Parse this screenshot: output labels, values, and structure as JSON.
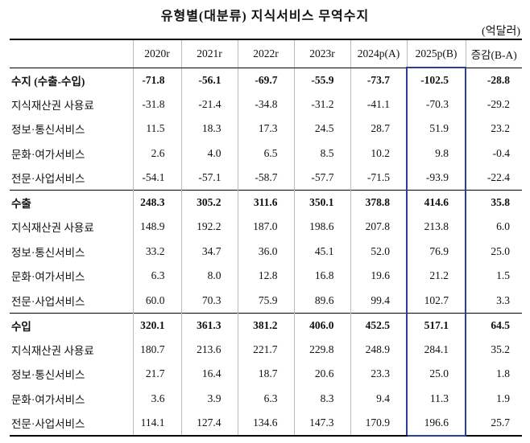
{
  "title": "유형별(대분류) 지식서비스 무역수지",
  "unit": "(억달러)",
  "table": {
    "columns": [
      "2020r",
      "2021r",
      "2022r",
      "2023r",
      "2024p(A)",
      "2025p(B)",
      "증감(B-A)"
    ],
    "sections": [
      {
        "rows": [
          {
            "label": "수지 (수출-수입)",
            "cells": [
              "-71.8",
              "-56.1",
              "-69.7",
              "-55.9",
              "-73.7",
              "-102.5",
              "-28.8"
            ]
          },
          {
            "label": "지식재산권 사용료",
            "cells": [
              "-31.8",
              "-21.4",
              "-34.8",
              "-31.2",
              "-41.1",
              "-70.3",
              "-29.2"
            ]
          },
          {
            "label": "정보·통신서비스",
            "cells": [
              "11.5",
              "18.3",
              "17.3",
              "24.5",
              "28.7",
              "51.9",
              "23.2"
            ]
          },
          {
            "label": "문화·여가서비스",
            "cells": [
              "2.6",
              "4.0",
              "6.5",
              "8.5",
              "10.2",
              "9.8",
              "-0.4"
            ]
          },
          {
            "label": "전문·사업서비스",
            "cells": [
              "-54.1",
              "-57.1",
              "-58.7",
              "-57.7",
              "-71.5",
              "-93.9",
              "-22.4"
            ]
          }
        ]
      },
      {
        "rows": [
          {
            "label": "수출",
            "cells": [
              "248.3",
              "305.2",
              "311.6",
              "350.1",
              "378.8",
              "414.6",
              "35.8"
            ]
          },
          {
            "label": "지식재산권 사용료",
            "cells": [
              "148.9",
              "192.2",
              "187.0",
              "198.6",
              "207.8",
              "213.8",
              "6.0"
            ]
          },
          {
            "label": "정보·통신서비스",
            "cells": [
              "33.2",
              "34.7",
              "36.0",
              "45.1",
              "52.0",
              "76.9",
              "25.0"
            ]
          },
          {
            "label": "문화·여가서비스",
            "cells": [
              "6.3",
              "8.0",
              "12.8",
              "16.8",
              "19.6",
              "21.2",
              "1.5"
            ]
          },
          {
            "label": "전문·사업서비스",
            "cells": [
              "60.0",
              "70.3",
              "75.9",
              "89.6",
              "99.4",
              "102.7",
              "3.3"
            ]
          }
        ]
      },
      {
        "rows": [
          {
            "label": "수입",
            "cells": [
              "320.1",
              "361.3",
              "381.2",
              "406.0",
              "452.5",
              "517.1",
              "64.5"
            ]
          },
          {
            "label": "지식재산권 사용료",
            "cells": [
              "180.7",
              "213.6",
              "221.7",
              "229.8",
              "248.9",
              "284.1",
              "35.2"
            ]
          },
          {
            "label": "정보·통신서비스",
            "cells": [
              "21.7",
              "16.4",
              "18.7",
              "20.6",
              "23.3",
              "25.0",
              "1.8"
            ]
          },
          {
            "label": "문화·여가서비스",
            "cells": [
              "3.6",
              "3.9",
              "6.3",
              "8.3",
              "9.4",
              "11.3",
              "1.9"
            ]
          },
          {
            "label": "전문·사업서비스",
            "cells": [
              "114.1",
              "127.4",
              "134.6",
              "147.3",
              "170.9",
              "196.6",
              "25.7"
            ]
          }
        ]
      }
    ]
  }
}
